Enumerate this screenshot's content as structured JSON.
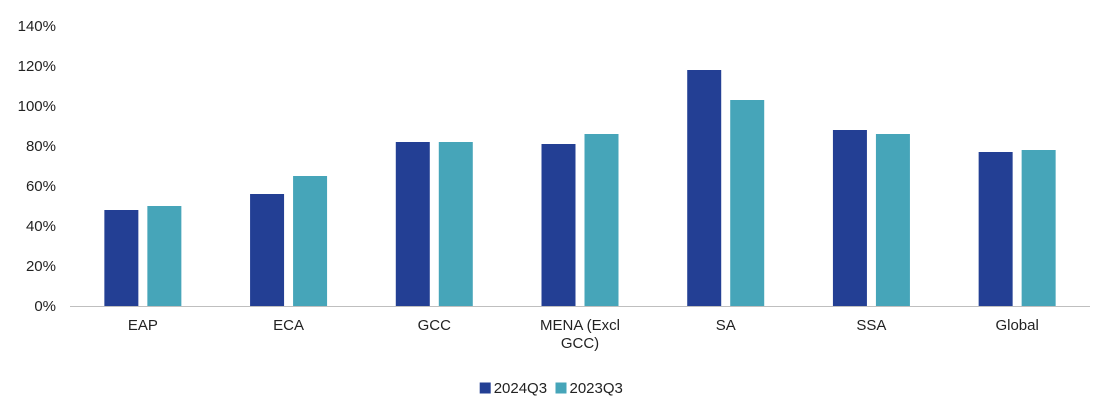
{
  "chart_data": {
    "type": "bar",
    "categories": [
      [
        "EAP"
      ],
      [
        "ECA"
      ],
      [
        "GCC"
      ],
      [
        "MENA (Excl",
        "GCC)"
      ],
      [
        "SA"
      ],
      [
        "SSA"
      ],
      [
        "Global"
      ]
    ],
    "series": [
      {
        "name": "2024Q3",
        "color": "#233f94",
        "values": [
          48,
          56,
          82,
          81,
          118,
          88,
          77
        ]
      },
      {
        "name": "2023Q3",
        "color": "#46a5b9",
        "values": [
          50,
          65,
          82,
          86,
          103,
          86,
          78
        ]
      }
    ],
    "yticks": [
      "0%",
      "20%",
      "40%",
      "60%",
      "80%",
      "100%",
      "120%",
      "140%"
    ],
    "ylim": [
      0,
      140
    ],
    "grid": false,
    "legend_position": "bottom"
  }
}
